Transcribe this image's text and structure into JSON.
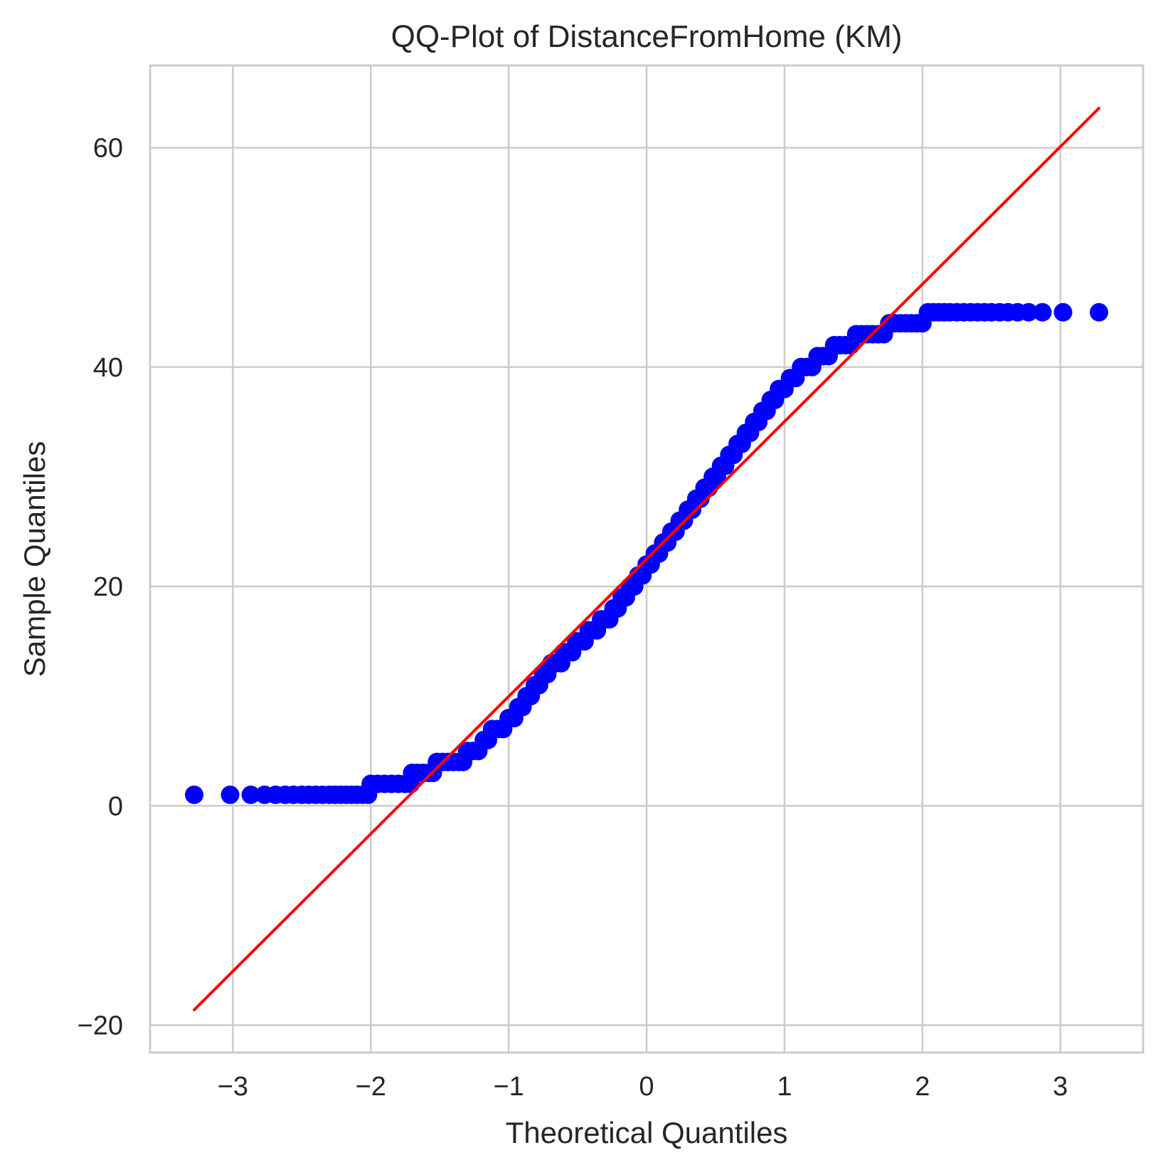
{
  "chart_data": {
    "type": "scatter",
    "title": "QQ-Plot of DistanceFromHome (KM)",
    "xlabel": "Theoretical Quantiles",
    "ylabel": "Sample Quantiles",
    "xlim": [
      -3.6,
      3.6
    ],
    "ylim": [
      -22.5,
      67.5
    ],
    "grid": true,
    "x_ticks": [
      -3,
      -2,
      -1,
      0,
      1,
      2,
      3
    ],
    "x_tick_labels": [
      "−3",
      "−2",
      "−1",
      "0",
      "1",
      "2",
      "3"
    ],
    "y_ticks": [
      -20,
      0,
      20,
      40,
      60
    ],
    "y_tick_labels": [
      "−20",
      "0",
      "20",
      "40",
      "60"
    ],
    "colors": {
      "points": "#0000ff",
      "line": "#ff0000",
      "grid": "#cccccc",
      "text": "#262626"
    },
    "reference_line": {
      "x": [
        -3.28,
        3.28
      ],
      "y": [
        -18.6,
        63.6
      ]
    },
    "series": [
      {
        "values": [
          [
            -3.28,
            1
          ],
          [
            -3.02,
            1
          ],
          [
            -2.87,
            1
          ],
          [
            -2.77,
            1
          ],
          [
            -2.69,
            1
          ],
          [
            -2.62,
            1
          ],
          [
            -2.56,
            1
          ],
          [
            -2.5,
            1
          ],
          [
            -2.45,
            1
          ],
          [
            -2.4,
            1
          ],
          [
            -2.35,
            1
          ],
          [
            -2.3,
            1
          ],
          [
            -2.26,
            1
          ],
          [
            -2.22,
            1
          ],
          [
            -2.18,
            1
          ],
          [
            -2.14,
            1
          ],
          [
            -2.1,
            1
          ],
          [
            -2.06,
            1
          ],
          [
            -2.02,
            1
          ],
          [
            -2.0,
            2
          ],
          [
            -1.95,
            2
          ],
          [
            -1.9,
            2
          ],
          [
            -1.85,
            2
          ],
          [
            -1.8,
            2
          ],
          [
            -1.75,
            2
          ],
          [
            -1.71,
            2
          ],
          [
            -1.7,
            3
          ],
          [
            -1.66,
            3
          ],
          [
            -1.62,
            3
          ],
          [
            -1.58,
            3
          ],
          [
            -1.55,
            3
          ],
          [
            -1.52,
            4
          ],
          [
            -1.48,
            4
          ],
          [
            -1.44,
            4
          ],
          [
            -1.4,
            4
          ],
          [
            -1.36,
            4
          ],
          [
            -1.33,
            4
          ],
          [
            -1.3,
            5
          ],
          [
            -1.26,
            5
          ],
          [
            -1.22,
            5
          ],
          [
            -1.18,
            6
          ],
          [
            -1.15,
            6
          ],
          [
            -1.12,
            7
          ],
          [
            -1.08,
            7
          ],
          [
            -1.04,
            7
          ],
          [
            -1.0,
            8
          ],
          [
            -0.96,
            8
          ],
          [
            -0.93,
            9
          ],
          [
            -0.9,
            9
          ],
          [
            -0.87,
            10
          ],
          [
            -0.84,
            10
          ],
          [
            -0.81,
            11
          ],
          [
            -0.78,
            11
          ],
          [
            -0.75,
            12
          ],
          [
            -0.72,
            12
          ],
          [
            -0.69,
            13
          ],
          [
            -0.66,
            13
          ],
          [
            -0.62,
            13
          ],
          [
            -0.6,
            14
          ],
          [
            -0.57,
            14
          ],
          [
            -0.54,
            14
          ],
          [
            -0.51,
            15
          ],
          [
            -0.48,
            15
          ],
          [
            -0.45,
            15
          ],
          [
            -0.42,
            16
          ],
          [
            -0.39,
            16
          ],
          [
            -0.36,
            16
          ],
          [
            -0.33,
            17
          ],
          [
            -0.3,
            17
          ],
          [
            -0.27,
            17
          ],
          [
            -0.24,
            18
          ],
          [
            -0.21,
            18
          ],
          [
            -0.18,
            19
          ],
          [
            -0.15,
            19
          ],
          [
            -0.12,
            20
          ],
          [
            -0.09,
            20
          ],
          [
            -0.06,
            21
          ],
          [
            -0.03,
            21
          ],
          [
            0.0,
            22
          ],
          [
            0.03,
            22
          ],
          [
            0.06,
            23
          ],
          [
            0.09,
            23
          ],
          [
            0.12,
            24
          ],
          [
            0.15,
            24
          ],
          [
            0.18,
            25
          ],
          [
            0.21,
            25
          ],
          [
            0.24,
            26
          ],
          [
            0.27,
            26
          ],
          [
            0.3,
            27
          ],
          [
            0.33,
            27
          ],
          [
            0.36,
            28
          ],
          [
            0.39,
            28
          ],
          [
            0.42,
            29
          ],
          [
            0.45,
            29
          ],
          [
            0.48,
            30
          ],
          [
            0.51,
            30
          ],
          [
            0.54,
            31
          ],
          [
            0.57,
            31
          ],
          [
            0.6,
            32
          ],
          [
            0.63,
            32
          ],
          [
            0.66,
            33
          ],
          [
            0.69,
            33
          ],
          [
            0.72,
            34
          ],
          [
            0.75,
            34
          ],
          [
            0.78,
            35
          ],
          [
            0.81,
            35
          ],
          [
            0.84,
            36
          ],
          [
            0.87,
            36
          ],
          [
            0.9,
            37
          ],
          [
            0.93,
            37
          ],
          [
            0.96,
            38
          ],
          [
            1.0,
            38
          ],
          [
            1.04,
            39
          ],
          [
            1.08,
            39
          ],
          [
            1.12,
            40
          ],
          [
            1.16,
            40
          ],
          [
            1.2,
            40
          ],
          [
            1.24,
            41
          ],
          [
            1.28,
            41
          ],
          [
            1.32,
            41
          ],
          [
            1.36,
            42
          ],
          [
            1.4,
            42
          ],
          [
            1.44,
            42
          ],
          [
            1.48,
            42
          ],
          [
            1.52,
            43
          ],
          [
            1.56,
            43
          ],
          [
            1.6,
            43
          ],
          [
            1.64,
            43
          ],
          [
            1.68,
            43
          ],
          [
            1.72,
            43
          ],
          [
            1.76,
            44
          ],
          [
            1.8,
            44
          ],
          [
            1.84,
            44
          ],
          [
            1.88,
            44
          ],
          [
            1.92,
            44
          ],
          [
            1.96,
            44
          ],
          [
            2.0,
            44
          ],
          [
            2.04,
            45
          ],
          [
            2.08,
            45
          ],
          [
            2.12,
            45
          ],
          [
            2.16,
            45
          ],
          [
            2.2,
            45
          ],
          [
            2.25,
            45
          ],
          [
            2.3,
            45
          ],
          [
            2.35,
            45
          ],
          [
            2.4,
            45
          ],
          [
            2.45,
            45
          ],
          [
            2.5,
            45
          ],
          [
            2.56,
            45
          ],
          [
            2.62,
            45
          ],
          [
            2.69,
            45
          ],
          [
            2.77,
            45
          ],
          [
            2.87,
            45
          ],
          [
            3.02,
            45
          ],
          [
            3.28,
            45
          ]
        ]
      }
    ]
  }
}
